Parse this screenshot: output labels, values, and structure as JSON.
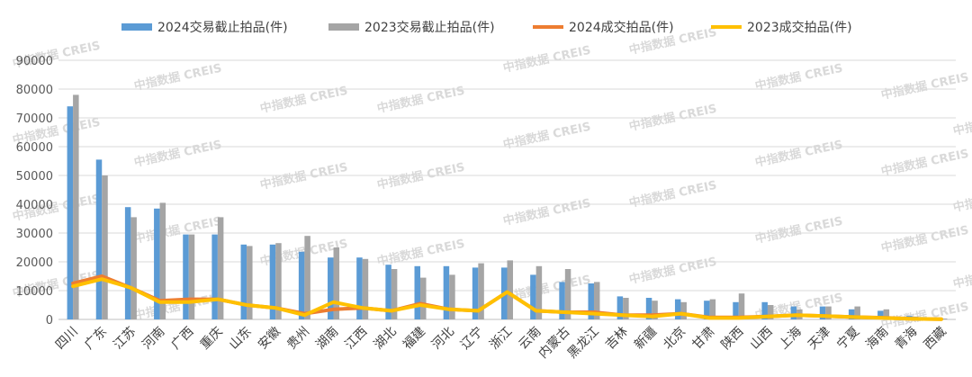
{
  "chart_data": {
    "type": "bar",
    "categories": [
      "四川",
      "广东",
      "江苏",
      "河南",
      "广西",
      "重庆",
      "山东",
      "安徽",
      "贵州",
      "湖南",
      "江西",
      "湖北",
      "福建",
      "河北",
      "辽宁",
      "浙江",
      "云南",
      "内蒙古",
      "黑龙江",
      "吉林",
      "新疆",
      "北京",
      "甘肃",
      "陕西",
      "山西",
      "上海",
      "天津",
      "宁夏",
      "海南",
      "青海",
      "西藏"
    ],
    "ylim": [
      0,
      90000
    ],
    "yticks": [
      0,
      10000,
      20000,
      30000,
      40000,
      50000,
      60000,
      70000,
      80000,
      90000
    ],
    "grid": true,
    "legend_position": "top",
    "series": [
      {
        "name": "2024交易截止拍品(件)",
        "kind": "bar",
        "color": "#5b9bd5",
        "values": [
          74000,
          55500,
          39000,
          38500,
          29500,
          29500,
          26000,
          26000,
          23500,
          21500,
          21500,
          19000,
          18500,
          18500,
          18000,
          18000,
          15500,
          13000,
          12500,
          8000,
          7500,
          7000,
          6500,
          6000,
          6000,
          4500,
          4500,
          3500,
          3000,
          1200,
          300
        ]
      },
      {
        "name": "2023交易截止拍品(件)",
        "kind": "bar",
        "color": "#a5a5a5",
        "values": [
          78000,
          50000,
          35500,
          40500,
          29500,
          35500,
          25500,
          26500,
          29000,
          25000,
          21000,
          17500,
          14500,
          15500,
          19500,
          20500,
          18500,
          17500,
          13000,
          7500,
          6500,
          6000,
          7000,
          9000,
          5000,
          3500,
          4500,
          4500,
          3500,
          1000,
          300
        ]
      },
      {
        "name": "2024成交拍品(件)",
        "kind": "line",
        "color": "#ed7d31",
        "values": [
          12500,
          15000,
          11000,
          6500,
          7000,
          7000,
          5000,
          4000,
          2000,
          3500,
          4000,
          3000,
          5500,
          3500,
          3000,
          9500,
          3000,
          2500,
          2500,
          1500,
          1500,
          2000,
          700,
          700,
          1000,
          1500,
          1200,
          800,
          600,
          200,
          100
        ]
      },
      {
        "name": "2023成交拍品(件)",
        "kind": "line",
        "color": "#ffc000",
        "values": [
          11500,
          14000,
          11000,
          6000,
          6000,
          7000,
          5000,
          4000,
          1500,
          6000,
          4000,
          3000,
          5000,
          3500,
          3000,
          9500,
          3000,
          2500,
          2000,
          1500,
          1000,
          2000,
          500,
          500,
          1000,
          1500,
          1200,
          800,
          500,
          200,
          100
        ]
      }
    ]
  },
  "watermark": {
    "text": "中指数据 CREIS"
  }
}
